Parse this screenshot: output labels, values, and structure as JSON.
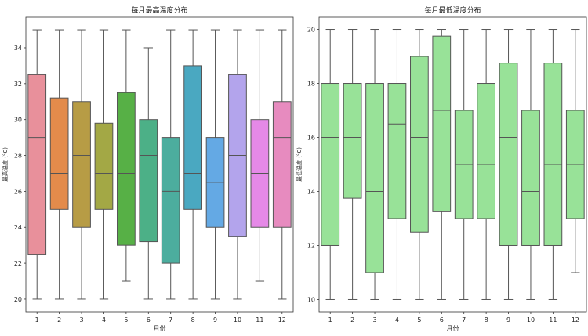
{
  "chart_data": [
    {
      "type": "box",
      "title": "每月最高温度分布",
      "xlabel": "月份",
      "ylabel": "最高温度 (°C)",
      "categories": [
        "1",
        "2",
        "3",
        "4",
        "5",
        "6",
        "7",
        "8",
        "9",
        "10",
        "11",
        "12"
      ],
      "ylim": [
        19.3,
        35.7
      ],
      "yticks": [
        20,
        22,
        24,
        26,
        28,
        30,
        32,
        34
      ],
      "grid": false,
      "boxes": [
        {
          "whisker_low": 20,
          "q1": 22.5,
          "median": 29,
          "q3": 32.5,
          "whisker_high": 35,
          "color": "#e8909b"
        },
        {
          "whisker_low": 20,
          "q1": 25,
          "median": 27,
          "q3": 31.2,
          "whisker_high": 35,
          "color": "#e38b4b"
        },
        {
          "whisker_low": 20,
          "q1": 24,
          "median": 28,
          "q3": 31,
          "whisker_high": 35,
          "color": "#b79c45"
        },
        {
          "whisker_low": 20,
          "q1": 25,
          "median": 27,
          "q3": 29.8,
          "whisker_high": 35,
          "color": "#a3a845"
        },
        {
          "whisker_low": 21,
          "q1": 23,
          "median": 27,
          "q3": 31.5,
          "whisker_high": 35,
          "color": "#57b046"
        },
        {
          "whisker_low": 20,
          "q1": 23.2,
          "median": 28,
          "q3": 30,
          "whisker_high": 34,
          "color": "#4cb087"
        },
        {
          "whisker_low": 20,
          "q1": 22,
          "median": 26,
          "q3": 29,
          "whisker_high": 35,
          "color": "#4cad9e"
        },
        {
          "whisker_low": 20,
          "q1": 25,
          "median": 27,
          "q3": 33,
          "whisker_high": 35,
          "color": "#4aa8c1"
        },
        {
          "whisker_low": 20,
          "q1": 24,
          "median": 26.5,
          "q3": 29,
          "whisker_high": 35,
          "color": "#64a9e4"
        },
        {
          "whisker_low": 20,
          "q1": 23.5,
          "median": 28,
          "q3": 32.5,
          "whisker_high": 35,
          "color": "#b3a4ec"
        },
        {
          "whisker_low": 21,
          "q1": 24,
          "median": 27,
          "q3": 30,
          "whisker_high": 35,
          "color": "#e589e7"
        },
        {
          "whisker_low": 20,
          "q1": 24,
          "median": 29,
          "q3": 31,
          "whisker_high": 35,
          "color": "#e78bbf"
        }
      ]
    },
    {
      "type": "box",
      "title": "每月最低温度分布",
      "xlabel": "月份",
      "ylabel": "最低温度 (°C)",
      "categories": [
        "1",
        "2",
        "3",
        "4",
        "5",
        "6",
        "7",
        "8",
        "9",
        "10",
        "11",
        "12"
      ],
      "ylim": [
        9.55,
        20.45
      ],
      "yticks": [
        10,
        12,
        14,
        16,
        18,
        20
      ],
      "grid": false,
      "boxes": [
        {
          "whisker_low": 10,
          "q1": 12,
          "median": 16,
          "q3": 18,
          "whisker_high": 20,
          "color": "#98e298"
        },
        {
          "whisker_low": 10,
          "q1": 13.75,
          "median": 16,
          "q3": 18,
          "whisker_high": 20,
          "color": "#98e298"
        },
        {
          "whisker_low": 10,
          "q1": 11,
          "median": 14,
          "q3": 18,
          "whisker_high": 20,
          "color": "#98e298"
        },
        {
          "whisker_low": 10,
          "q1": 13,
          "median": 16.5,
          "q3": 18,
          "whisker_high": 20,
          "color": "#98e298"
        },
        {
          "whisker_low": 10,
          "q1": 12.5,
          "median": 16,
          "q3": 19,
          "whisker_high": 20,
          "color": "#98e298"
        },
        {
          "whisker_low": 10,
          "q1": 13.25,
          "median": 17,
          "q3": 19.75,
          "whisker_high": 20,
          "color": "#98e298"
        },
        {
          "whisker_low": 10,
          "q1": 13,
          "median": 15,
          "q3": 17,
          "whisker_high": 20,
          "color": "#98e298"
        },
        {
          "whisker_low": 10,
          "q1": 13,
          "median": 15,
          "q3": 18,
          "whisker_high": 20,
          "color": "#98e298"
        },
        {
          "whisker_low": 10,
          "q1": 12,
          "median": 16,
          "q3": 18.75,
          "whisker_high": 20,
          "color": "#98e298"
        },
        {
          "whisker_low": 10,
          "q1": 12,
          "median": 14,
          "q3": 17,
          "whisker_high": 20,
          "color": "#98e298"
        },
        {
          "whisker_low": 10,
          "q1": 12,
          "median": 15,
          "q3": 18.75,
          "whisker_high": 20,
          "color": "#98e298"
        },
        {
          "whisker_low": 11,
          "q1": 13,
          "median": 15,
          "q3": 17,
          "whisker_high": 20,
          "color": "#98e298"
        }
      ]
    }
  ]
}
